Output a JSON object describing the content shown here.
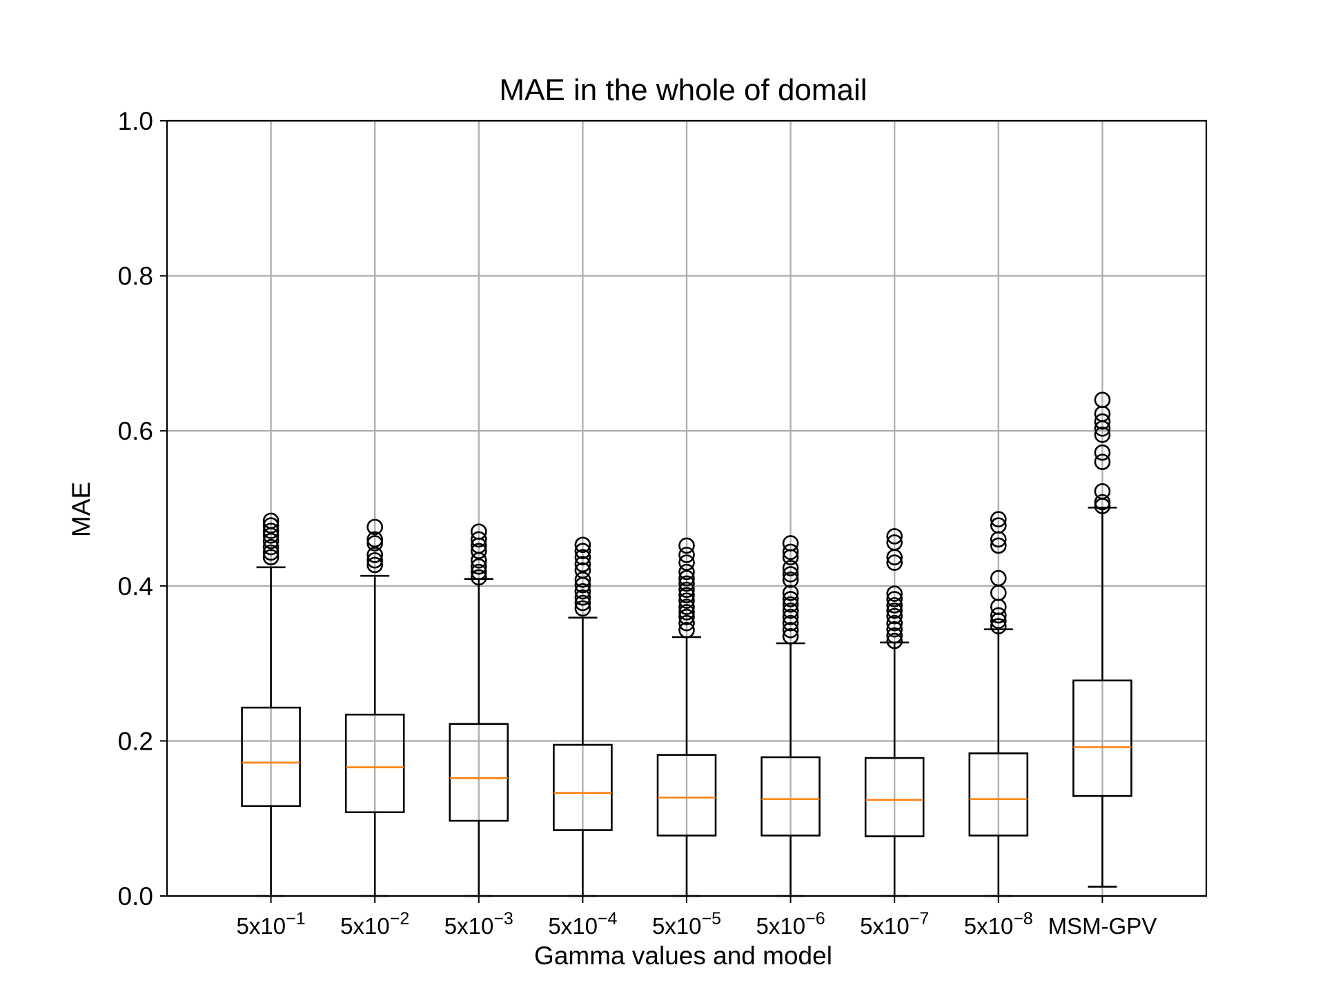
{
  "chart_data": {
    "type": "box",
    "title": "MAE in the whole of domail",
    "xlabel": "Gamma values and model",
    "ylabel": "MAE",
    "ylim": [
      0.0,
      1.0
    ],
    "yticks": [
      "0.0",
      "0.2",
      "0.4",
      "0.6",
      "0.8",
      "1.0"
    ],
    "grid": true,
    "colors": {
      "box": "#000000",
      "median": "#ff7f0e",
      "grid": "#b0b0b0"
    },
    "categories": [
      {
        "base": "5x10",
        "exp": "−1"
      },
      {
        "base": "5x10",
        "exp": "−2"
      },
      {
        "base": "5x10",
        "exp": "−3"
      },
      {
        "base": "5x10",
        "exp": "−4"
      },
      {
        "base": "5x10",
        "exp": "−5"
      },
      {
        "base": "5x10",
        "exp": "−6"
      },
      {
        "base": "5x10",
        "exp": "−7"
      },
      {
        "base": "5x10",
        "exp": "−8"
      },
      {
        "base": "MSM-GPV",
        "exp": ""
      }
    ],
    "boxes": [
      {
        "whislo": 0.0,
        "q1": 0.116,
        "med": 0.172,
        "q3": 0.243,
        "whishi": 0.424,
        "fliers": [
          0.437,
          0.443,
          0.45,
          0.458,
          0.465,
          0.471,
          0.478,
          0.484
        ]
      },
      {
        "whislo": 0.0,
        "q1": 0.108,
        "med": 0.166,
        "q3": 0.234,
        "whishi": 0.413,
        "fliers": [
          0.427,
          0.433,
          0.44,
          0.455,
          0.46,
          0.476
        ]
      },
      {
        "whislo": 0.0,
        "q1": 0.097,
        "med": 0.152,
        "q3": 0.222,
        "whishi": 0.409,
        "fliers": [
          0.411,
          0.418,
          0.425,
          0.433,
          0.445,
          0.452,
          0.46,
          0.47
        ]
      },
      {
        "whislo": 0.0,
        "q1": 0.085,
        "med": 0.133,
        "q3": 0.195,
        "whishi": 0.359,
        "fliers": [
          0.371,
          0.378,
          0.385,
          0.393,
          0.401,
          0.408,
          0.42,
          0.428,
          0.437,
          0.445,
          0.453
        ]
      },
      {
        "whislo": 0.0,
        "q1": 0.078,
        "med": 0.127,
        "q3": 0.182,
        "whishi": 0.334,
        "fliers": [
          0.343,
          0.352,
          0.36,
          0.366,
          0.373,
          0.381,
          0.388,
          0.395,
          0.403,
          0.41,
          0.418,
          0.43,
          0.44,
          0.452
        ]
      },
      {
        "whislo": 0.0,
        "q1": 0.078,
        "med": 0.125,
        "q3": 0.179,
        "whishi": 0.326,
        "fliers": [
          0.335,
          0.343,
          0.352,
          0.36,
          0.368,
          0.376,
          0.383,
          0.391,
          0.408,
          0.415,
          0.423,
          0.437,
          0.444,
          0.455
        ]
      },
      {
        "whislo": 0.0,
        "q1": 0.077,
        "med": 0.124,
        "q3": 0.178,
        "whishi": 0.327,
        "fliers": [
          0.329,
          0.336,
          0.344,
          0.352,
          0.361,
          0.368,
          0.375,
          0.383,
          0.39,
          0.43,
          0.437,
          0.456,
          0.464
        ]
      },
      {
        "whislo": 0.0,
        "q1": 0.078,
        "med": 0.125,
        "q3": 0.184,
        "whishi": 0.344,
        "fliers": [
          0.348,
          0.355,
          0.362,
          0.373,
          0.391,
          0.41,
          0.452,
          0.46,
          0.478,
          0.486
        ]
      },
      {
        "whislo": 0.012,
        "q1": 0.129,
        "med": 0.192,
        "q3": 0.278,
        "whishi": 0.501,
        "fliers": [
          0.503,
          0.508,
          0.522,
          0.56,
          0.572,
          0.595,
          0.603,
          0.612,
          0.622,
          0.64
        ]
      }
    ]
  }
}
